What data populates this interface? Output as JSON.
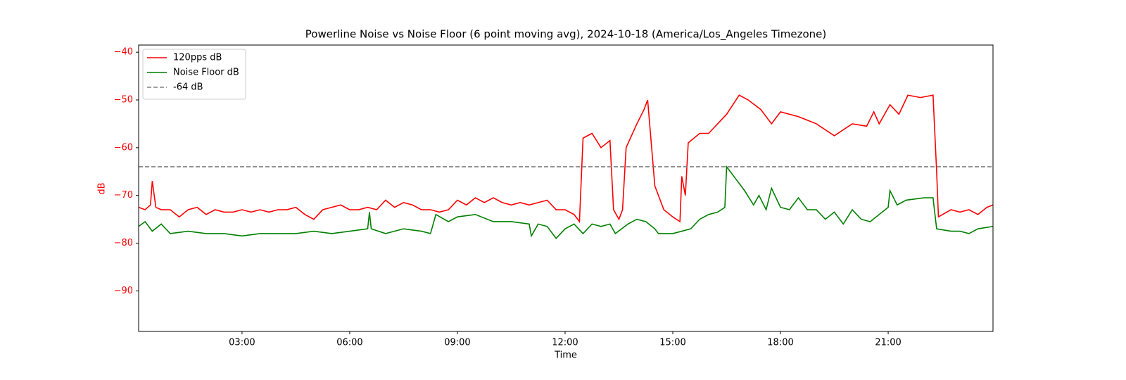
{
  "chart_data": {
    "type": "line",
    "title": "Powerline Noise vs Noise Floor (6 point moving avg), 2024-10-18 (America/Los_Angeles Timezone)",
    "x_label": "Time",
    "y_label": "dB",
    "y_label_color": "#ff0000",
    "xlim": [
      0.12,
      23.92
    ],
    "ylim": [
      -98.5,
      -38.5
    ],
    "xticks": [
      {
        "value": 3,
        "label": "03:00"
      },
      {
        "value": 6,
        "label": "06:00"
      },
      {
        "value": 9,
        "label": "09:00"
      },
      {
        "value": 12,
        "label": "12:00"
      },
      {
        "value": 15,
        "label": "15:00"
      },
      {
        "value": 18,
        "label": "18:00"
      },
      {
        "value": 21,
        "label": "21:00"
      }
    ],
    "yticks": [
      {
        "value": -40,
        "label": "−40"
      },
      {
        "value": -50,
        "label": "−50"
      },
      {
        "value": -60,
        "label": "−60"
      },
      {
        "value": -70,
        "label": "−70"
      },
      {
        "value": -80,
        "label": "−80"
      },
      {
        "value": -90,
        "label": "−90"
      }
    ],
    "grid": false,
    "legend": "upper left",
    "series": [
      {
        "name": "120pps dB",
        "color": "#ff0000",
        "x": [
          0.12,
          0.3,
          0.45,
          0.5,
          0.6,
          0.75,
          1,
          1.25,
          1.5,
          1.75,
          2,
          2.25,
          2.5,
          2.75,
          3,
          3.25,
          3.5,
          3.75,
          4,
          4.25,
          4.5,
          4.75,
          5,
          5.25,
          5.5,
          5.75,
          6,
          6.25,
          6.5,
          6.75,
          7,
          7.25,
          7.5,
          7.75,
          8,
          8.25,
          8.5,
          8.75,
          9,
          9.25,
          9.5,
          9.75,
          10,
          10.25,
          10.5,
          10.75,
          11,
          11.25,
          11.5,
          11.75,
          12,
          12.25,
          12.4,
          12.5,
          12.75,
          13,
          13.25,
          13.35,
          13.5,
          13.6,
          13.7,
          14,
          14.2,
          14.3,
          14.5,
          14.75,
          15,
          15.2,
          15.25,
          15.35,
          15.43,
          15.75,
          16,
          16.25,
          16.5,
          16.85,
          17.1,
          17.45,
          17.75,
          18,
          18.5,
          19,
          19.5,
          20,
          20.4,
          20.6,
          20.75,
          21.05,
          21.3,
          21.55,
          21.9,
          22.25,
          22.35,
          22.4,
          22.75,
          23,
          23.25,
          23.5,
          23.75,
          23.92
        ],
        "values": [
          -72.5,
          -73,
          -72,
          -67,
          -72.5,
          -73,
          -73,
          -74.5,
          -73,
          -72.5,
          -74,
          -73,
          -73.5,
          -73.5,
          -73,
          -73.5,
          -73,
          -73.5,
          -73,
          -73,
          -72.5,
          -74,
          -75,
          -73,
          -72.5,
          -72,
          -73,
          -73,
          -72.5,
          -73,
          -71,
          -72.5,
          -71.5,
          -72,
          -73,
          -73,
          -73.5,
          -73,
          -71,
          -72,
          -70.5,
          -71.5,
          -70.5,
          -71.5,
          -72,
          -71.5,
          -72,
          -71.5,
          -71,
          -73,
          -73,
          -74,
          -75.5,
          -58,
          -57,
          -60,
          -58.5,
          -73,
          -75,
          -73,
          -60,
          -55,
          -52,
          -50,
          -68,
          -73,
          -74.5,
          -75.5,
          -66,
          -70,
          -59,
          -57,
          -57,
          -55,
          -53,
          -49,
          -50,
          -52,
          -55,
          -52.5,
          -53.5,
          -55,
          -57.5,
          -55,
          -55.5,
          -52.5,
          -55,
          -51,
          -53,
          -49,
          -49.5,
          -49,
          -65,
          -74.5,
          -73,
          -73.5,
          -73,
          -74,
          -72.5,
          -72
        ]
      },
      {
        "name": "Noise Floor dB",
        "color": "#008000",
        "x": [
          0.12,
          0.3,
          0.5,
          0.75,
          1,
          1.5,
          2,
          2.5,
          3,
          3.5,
          4,
          4.5,
          5,
          5.5,
          6,
          6.5,
          6.55,
          6.6,
          7,
          7.5,
          8,
          8.25,
          8.4,
          8.75,
          9,
          9.5,
          10,
          10.5,
          11,
          11.06,
          11.25,
          11.5,
          11.75,
          12,
          12.25,
          12.5,
          12.75,
          13,
          13.25,
          13.4,
          13.75,
          14,
          14.25,
          14.5,
          14.6,
          15,
          15.25,
          15.5,
          15.75,
          16,
          16.25,
          16.45,
          16.5,
          16.75,
          17,
          17.25,
          17.4,
          17.6,
          17.75,
          18,
          18.25,
          18.5,
          18.75,
          19,
          19.25,
          19.5,
          19.75,
          20,
          20.25,
          20.5,
          20.75,
          21,
          21.05,
          21.25,
          21.5,
          22,
          22.25,
          22.35,
          22.75,
          23,
          23.25,
          23.5,
          23.92
        ],
        "values": [
          -76.5,
          -75.5,
          -77.5,
          -76,
          -78,
          -77.5,
          -78,
          -78,
          -78.5,
          -78,
          -78,
          -78,
          -77.5,
          -78,
          -77.5,
          -77,
          -73.5,
          -77,
          -78,
          -77,
          -77.5,
          -78,
          -74,
          -75.5,
          -74.5,
          -74,
          -75.5,
          -75.5,
          -76,
          -78.5,
          -76,
          -76.5,
          -79,
          -77,
          -76,
          -78,
          -76,
          -76.5,
          -76,
          -78,
          -76,
          -75,
          -75.5,
          -77,
          -78,
          -78,
          -77.5,
          -77,
          -75,
          -74,
          -73.5,
          -72.5,
          -64,
          -66.5,
          -69,
          -72,
          -70,
          -73,
          -68.5,
          -72.5,
          -73,
          -70.5,
          -73,
          -73,
          -75,
          -73.5,
          -76,
          -73,
          -75,
          -75.5,
          -74,
          -72.5,
          -69,
          -72,
          -71,
          -70.5,
          -70.5,
          -77,
          -77.5,
          -77.5,
          -78,
          -77,
          -76.5
        ]
      }
    ],
    "reference_line": {
      "name": "-64 dB",
      "value": -64,
      "color": "#808080",
      "dashed": true
    },
    "tick_label_color_y": "#ff0000"
  }
}
